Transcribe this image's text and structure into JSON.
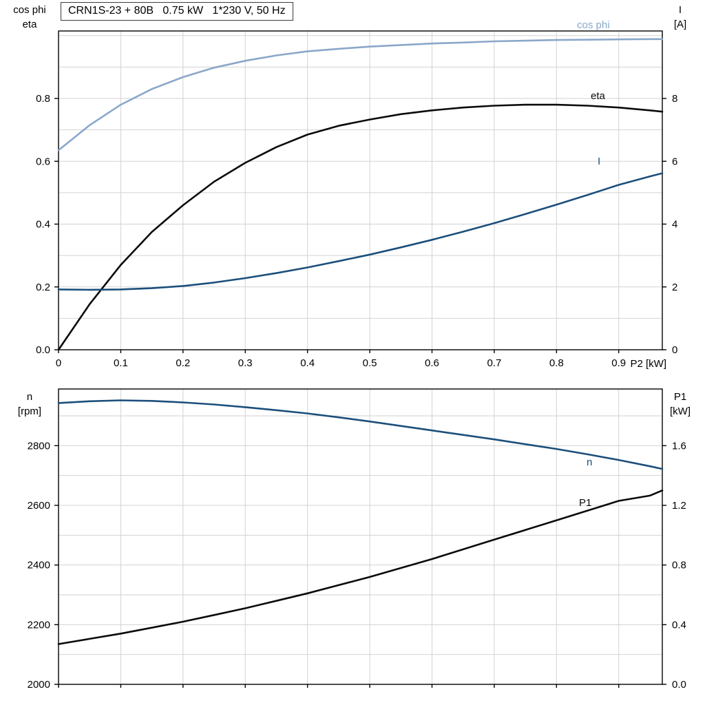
{
  "title_box": "CRN1S-23 + 80B   0.75 kW   1*230 V, 50 Hz",
  "colors": {
    "light_blue": "#8aa7c9",
    "dark_blue": "#1b4e7b",
    "black": "#0a0a0a",
    "grid": "#d2d2d2",
    "frame": "#000000"
  },
  "chart_data": [
    {
      "id": "top",
      "type": "line",
      "x_label": "P2 [kW]",
      "x_min": 0,
      "x_max": 0.97,
      "x_ticks": [
        0,
        0.1,
        0.2,
        0.3,
        0.4,
        0.5,
        0.6,
        0.7,
        0.8,
        0.9
      ],
      "x_tick_labels": [
        "0",
        "0.1",
        "0.2",
        "0.3",
        "0.4",
        "0.5",
        "0.6",
        "0.7",
        "0.8",
        "0.9"
      ],
      "x_grid": [
        0.1,
        0.2,
        0.3,
        0.4,
        0.5,
        0.6,
        0.7,
        0.8,
        0.9
      ],
      "left_axis": {
        "title": [
          "cos phi",
          "eta"
        ],
        "min": 0,
        "max": 1.0148,
        "ticks": [
          0,
          0.2,
          0.4,
          0.6,
          0.8
        ],
        "tick_labels": [
          "0.0",
          "0.2",
          "0.4",
          "0.6",
          "0.8"
        ],
        "grid": [
          0.1,
          0.2,
          0.3,
          0.4,
          0.5,
          0.6,
          0.7,
          0.8,
          0.9,
          1.0
        ]
      },
      "right_axis": {
        "title": [
          "I",
          "[A]"
        ],
        "min": 0,
        "max": 10.148,
        "ticks": [
          0,
          2,
          4,
          6,
          8
        ],
        "tick_labels": [
          "0",
          "2",
          "4",
          "6",
          "8"
        ]
      },
      "series": [
        {
          "name": "cos phi",
          "axis": "left",
          "color_key": "light_blue",
          "x": [
            0,
            0.05,
            0.1,
            0.15,
            0.2,
            0.25,
            0.3,
            0.35,
            0.4,
            0.45,
            0.5,
            0.55,
            0.6,
            0.65,
            0.7,
            0.75,
            0.8,
            0.85,
            0.9,
            0.95,
            0.97
          ],
          "y": [
            0.635,
            0.715,
            0.78,
            0.83,
            0.868,
            0.898,
            0.92,
            0.937,
            0.95,
            0.958,
            0.965,
            0.97,
            0.975,
            0.978,
            0.982,
            0.984,
            0.986,
            0.987,
            0.988,
            0.989,
            0.989
          ]
        },
        {
          "name": "eta",
          "axis": "left",
          "color_key": "black",
          "x": [
            0,
            0.05,
            0.1,
            0.15,
            0.2,
            0.25,
            0.3,
            0.35,
            0.4,
            0.45,
            0.5,
            0.55,
            0.6,
            0.65,
            0.7,
            0.75,
            0.8,
            0.85,
            0.9,
            0.95,
            0.97
          ],
          "y": [
            0,
            0.145,
            0.27,
            0.375,
            0.46,
            0.535,
            0.595,
            0.645,
            0.685,
            0.713,
            0.733,
            0.75,
            0.762,
            0.771,
            0.777,
            0.78,
            0.78,
            0.777,
            0.771,
            0.762,
            0.758
          ]
        },
        {
          "name": "I",
          "axis": "right",
          "color_key": "dark_blue",
          "x": [
            0,
            0.05,
            0.1,
            0.15,
            0.2,
            0.25,
            0.3,
            0.35,
            0.4,
            0.45,
            0.5,
            0.55,
            0.6,
            0.65,
            0.7,
            0.75,
            0.8,
            0.85,
            0.9,
            0.95,
            0.97
          ],
          "y": [
            1.92,
            1.91,
            1.92,
            1.96,
            2.03,
            2.14,
            2.28,
            2.44,
            2.62,
            2.82,
            3.03,
            3.26,
            3.5,
            3.76,
            4.03,
            4.32,
            4.62,
            4.93,
            5.25,
            5.52,
            5.62
          ]
        }
      ]
    },
    {
      "id": "bottom",
      "type": "line",
      "x_label": "",
      "x_min": 0,
      "x_max": 0.97,
      "x_ticks": [
        0,
        0.1,
        0.2,
        0.3,
        0.4,
        0.5,
        0.6,
        0.7,
        0.8,
        0.9
      ],
      "x_tick_labels": [],
      "x_grid": [
        0.1,
        0.2,
        0.3,
        0.4,
        0.5,
        0.6,
        0.7,
        0.8,
        0.9
      ],
      "left_axis": {
        "title": [
          "n",
          "[rpm]"
        ],
        "min": 2000,
        "max": 2990,
        "ticks": [
          2000,
          2200,
          2400,
          2600,
          2800
        ],
        "tick_labels": [
          "2000",
          "2200",
          "2400",
          "2600",
          "2800"
        ],
        "grid": [
          2100,
          2200,
          2300,
          2400,
          2500,
          2600,
          2700,
          2800,
          2900
        ]
      },
      "right_axis": {
        "title": [
          "P1",
          "[kW]"
        ],
        "min": 0,
        "max": 1.98,
        "ticks": [
          0,
          0.4,
          0.8,
          1.2,
          1.6
        ],
        "tick_labels": [
          "0.0",
          "0.4",
          "0.8",
          "1.2",
          "1.6"
        ]
      },
      "series": [
        {
          "name": "n",
          "axis": "left",
          "color_key": "dark_blue",
          "x": [
            0,
            0.05,
            0.1,
            0.15,
            0.2,
            0.25,
            0.3,
            0.35,
            0.4,
            0.45,
            0.5,
            0.55,
            0.6,
            0.65,
            0.7,
            0.75,
            0.8,
            0.85,
            0.9,
            0.95,
            0.97
          ],
          "y": [
            2943,
            2949,
            2952,
            2950,
            2945,
            2938,
            2929,
            2919,
            2908,
            2895,
            2881,
            2866,
            2851,
            2836,
            2821,
            2805,
            2789,
            2771,
            2752,
            2731,
            2722
          ]
        },
        {
          "name": "P1",
          "axis": "right",
          "color_key": "black",
          "x": [
            0,
            0.05,
            0.1,
            0.15,
            0.2,
            0.25,
            0.3,
            0.35,
            0.4,
            0.45,
            0.5,
            0.55,
            0.6,
            0.65,
            0.7,
            0.75,
            0.8,
            0.85,
            0.9,
            0.95,
            0.97
          ],
          "y": [
            0.27,
            0.305,
            0.34,
            0.38,
            0.42,
            0.465,
            0.51,
            0.56,
            0.61,
            0.665,
            0.72,
            0.78,
            0.84,
            0.905,
            0.97,
            1.035,
            1.1,
            1.165,
            1.23,
            1.265,
            1.3
          ]
        }
      ]
    }
  ]
}
